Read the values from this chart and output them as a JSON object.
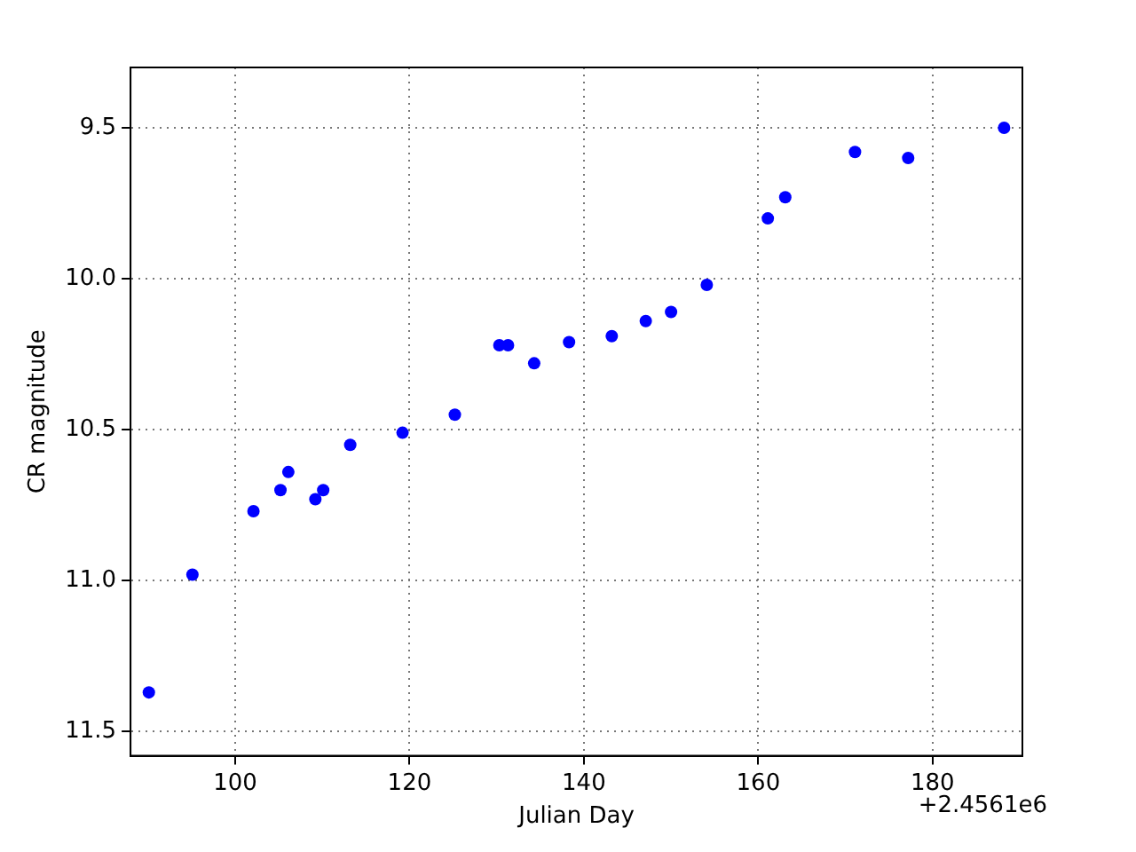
{
  "chart_data": {
    "type": "scatter",
    "xlabel": "Julian Day",
    "ylabel": "CR magnitude",
    "annotations": [
      "+2.4561e6"
    ],
    "series": [
      {
        "color": "#0000ff",
        "x": [
          90.1,
          95.1,
          102.1,
          105.2,
          106.1,
          109.2,
          110.1,
          113.2,
          119.2,
          125.2,
          130.3,
          131.3,
          134.3,
          138.3,
          143.2,
          147.1,
          150.0,
          154.1,
          161.1,
          163.1,
          171.1,
          177.2,
          188.2
        ],
        "values": [
          11.37,
          10.98,
          10.77,
          10.7,
          10.64,
          10.73,
          10.7,
          10.55,
          10.51,
          10.45,
          10.22,
          10.22,
          10.28,
          10.21,
          10.19,
          10.14,
          10.11,
          10.02,
          9.8,
          9.73,
          9.58,
          9.6,
          9.5
        ]
      }
    ],
    "xlim": [
      88,
      190.3
    ],
    "xticks": [
      100,
      120,
      140,
      160,
      180
    ],
    "ylim": [
      11.58,
      9.3
    ],
    "yticks": [
      {
        "value": 9.5,
        "label": "9.5"
      },
      {
        "value": 10.0,
        "label": "10.0"
      },
      {
        "value": 10.5,
        "label": "10.5"
      },
      {
        "value": 11.0,
        "label": "11.0"
      },
      {
        "value": 11.5,
        "label": "11.5"
      }
    ],
    "grid": true,
    "marker": "circle",
    "legend": false
  }
}
